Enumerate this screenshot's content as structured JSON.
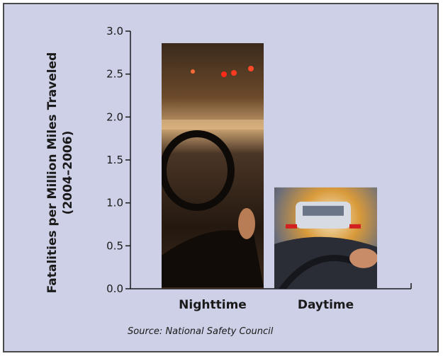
{
  "chart_data": {
    "type": "bar",
    "categories": [
      "Nighttime",
      "Daytime"
    ],
    "values": [
      2.86,
      1.18
    ],
    "ylabel": "Fatalities per Million Miles Traveled",
    "ylabel_sub": "(2004–2006)",
    "xlabel": "",
    "ylim": [
      0,
      3.0
    ],
    "yticks": [
      "0.0",
      "0.5",
      "1.0",
      "1.5",
      "2.0",
      "2.5",
      "3.0"
    ],
    "grid": false,
    "source": "Source: National Safety Council",
    "bar_images": [
      "night-driving-photo",
      "day-driving-photo"
    ],
    "colors": {
      "background": "#cdd0e6",
      "border": "#4a4a4a",
      "axis": "#1a1a1a"
    }
  }
}
